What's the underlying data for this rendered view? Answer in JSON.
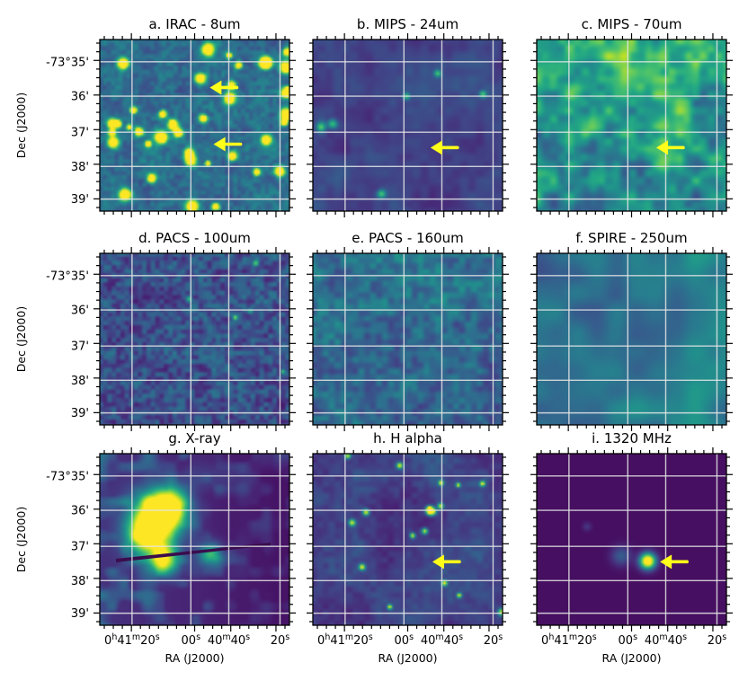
{
  "figure": {
    "type": "image-grid",
    "colormap": "viridis",
    "grid_color": "#e6e6e6",
    "arrow_color": "#ffff1a",
    "frame_color": "#000000"
  },
  "chart_data": {
    "type": "heatmap",
    "rows": 3,
    "cols": 3,
    "xlabel": "RA (J2000)",
    "ylabel": "Dec (J2000)",
    "x_tick_labels": [
      {
        "h": "0",
        "m": "41",
        "s": "20",
        "prefix": true
      },
      {
        "s": "00"
      },
      {
        "m": "40",
        "s": "40",
        "prefix": false
      },
      {
        "s": "20"
      }
    ],
    "y_tick_labels": [
      "-73°35'",
      "36'",
      "37'",
      "38'",
      "39'"
    ],
    "panels": [
      {
        "title": "a. IRAC - 8um",
        "arrows": [
          {
            "x": 0.58,
            "y": 0.28
          },
          {
            "x": 0.6,
            "y": 0.61
          }
        ],
        "style": "irac"
      },
      {
        "title": "b. MIPS - 24um",
        "arrows": [
          {
            "x": 0.62,
            "y": 0.63
          }
        ],
        "style": "mips24"
      },
      {
        "title": "c. MIPS - 70um",
        "arrows": [
          {
            "x": 0.63,
            "y": 0.63
          }
        ],
        "style": "mips70"
      },
      {
        "title": "d. PACS - 100um",
        "arrows": [],
        "style": "pacs100"
      },
      {
        "title": "e. PACS - 160um",
        "arrows": [],
        "style": "pacs160"
      },
      {
        "title": "f. SPIRE - 250um",
        "arrows": [],
        "style": "spire"
      },
      {
        "title": "g. X-ray",
        "arrows": [],
        "style": "xray"
      },
      {
        "title": "h. H alpha",
        "arrows": [
          {
            "x": 0.63,
            "y": 0.63
          }
        ],
        "style": "halpha"
      },
      {
        "title": "i. 1320 MHz",
        "arrows": [
          {
            "x": 0.65,
            "y": 0.63
          }
        ],
        "style": "radio"
      }
    ]
  }
}
